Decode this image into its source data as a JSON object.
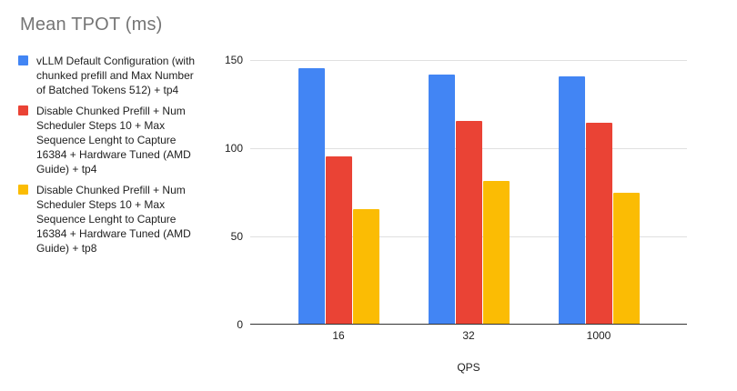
{
  "title": "Mean TPOT (ms)",
  "chart_data": {
    "type": "bar",
    "title": "Mean TPOT (ms)",
    "categories": [
      "16",
      "32",
      "1000"
    ],
    "series": [
      {
        "name": "vLLM Default Configuration (with chunked prefill and Max Number of Batched Tokens 512) + tp4",
        "color": "#4285F4",
        "values": [
          145,
          141,
          140
        ]
      },
      {
        "name": "Disable Chunked Prefill + Num Scheduler Steps 10 + Max Sequence Lenght to Capture 16384 + Hardware Tuned (AMD Guide) + tp4",
        "color": "#EA4335",
        "values": [
          95,
          115,
          114
        ]
      },
      {
        "name": "Disable Chunked Prefill + Num Scheduler Steps 10 + Max Sequence Lenght to Capture 16384 + Hardware Tuned (AMD Guide) + tp8",
        "color": "#FBBC04",
        "values": [
          65,
          81,
          74
        ]
      }
    ],
    "xlabel": "QPS",
    "ylabel": "",
    "ylim": [
      0,
      150
    ],
    "yticks": [
      0,
      50,
      100,
      150
    ],
    "grid": true,
    "legend_position": "left"
  },
  "colors": {
    "title_text": "#757575",
    "body_text": "#212121",
    "gridline": "#e0e0e0",
    "axis_line": "#333333",
    "background": "#ffffff"
  }
}
